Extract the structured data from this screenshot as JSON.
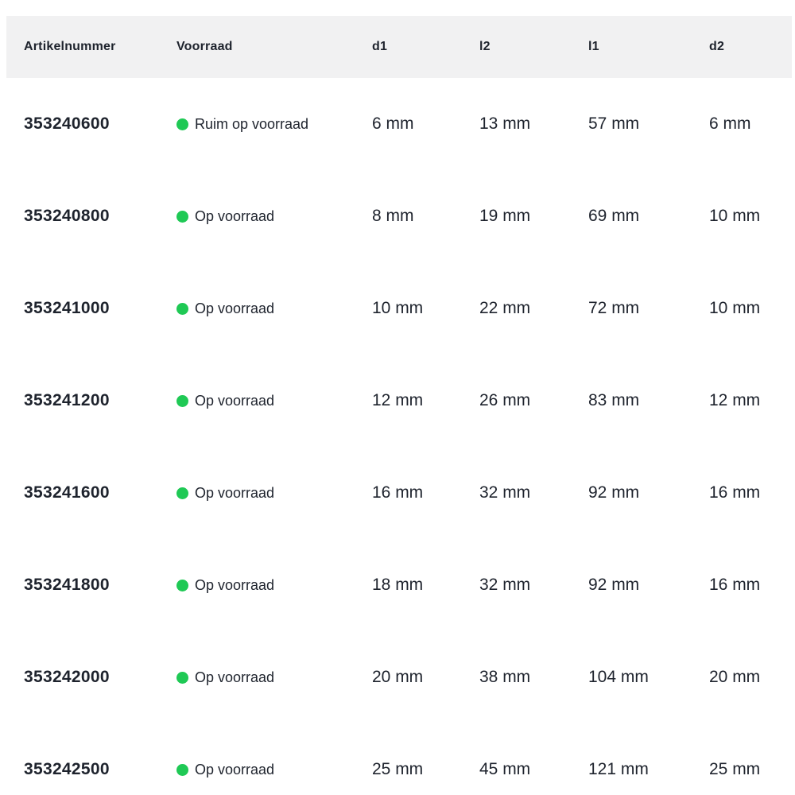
{
  "table": {
    "columns": [
      "Artikelnummer",
      "Voorraad",
      "d1",
      "l2",
      "l1",
      "d2"
    ],
    "rows": [
      {
        "artikelnummer": "353240600",
        "voorraad": "Ruim op voorraad",
        "d1": "6 mm",
        "l2": "13 mm",
        "l1": "57 mm",
        "d2": "6 mm"
      },
      {
        "artikelnummer": "353240800",
        "voorraad": "Op voorraad",
        "d1": "8 mm",
        "l2": "19 mm",
        "l1": "69 mm",
        "d2": "10 mm"
      },
      {
        "artikelnummer": "353241000",
        "voorraad": "Op voorraad",
        "d1": "10 mm",
        "l2": "22 mm",
        "l1": "72 mm",
        "d2": "10 mm"
      },
      {
        "artikelnummer": "353241200",
        "voorraad": "Op voorraad",
        "d1": "12 mm",
        "l2": "26 mm",
        "l1": "83 mm",
        "d2": "12 mm"
      },
      {
        "artikelnummer": "353241600",
        "voorraad": "Op voorraad",
        "d1": "16 mm",
        "l2": "32 mm",
        "l1": "92 mm",
        "d2": "16 mm"
      },
      {
        "artikelnummer": "353241800",
        "voorraad": "Op voorraad",
        "d1": "18 mm",
        "l2": "32 mm",
        "l1": "92 mm",
        "d2": "16 mm"
      },
      {
        "artikelnummer": "353242000",
        "voorraad": "Op voorraad",
        "d1": "20 mm",
        "l2": "38 mm",
        "l1": "104 mm",
        "d2": "20 mm"
      },
      {
        "artikelnummer": "353242500",
        "voorraad": "Op voorraad",
        "d1": "25 mm",
        "l2": "45 mm",
        "l1": "121 mm",
        "d2": "25 mm"
      }
    ]
  },
  "colors": {
    "header_bg": "#f1f1f2",
    "text": "#1e232d",
    "stock_dot": "#1fc955"
  }
}
